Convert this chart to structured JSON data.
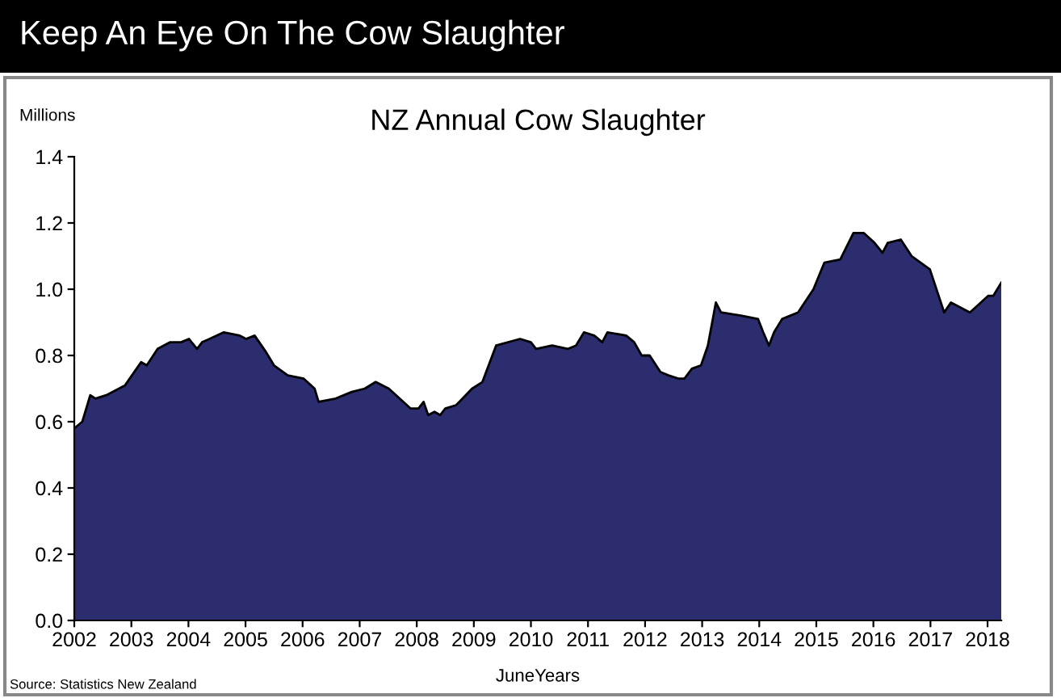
{
  "chart_data": {
    "type": "area",
    "title": "Keep An Eye On The Cow Slaughter",
    "subtitle": "NZ Annual Cow Slaughter",
    "ylabel": "Millions",
    "xlabel": "JuneYears",
    "annotations": [
      "Source: Statistics New Zealand"
    ],
    "series": [
      {
        "color": "#2b2d6e",
        "x": [
          2002.0,
          2002.14,
          2002.28,
          2002.37,
          2002.56,
          2002.89,
          2003.17,
          2003.27,
          2003.46,
          2003.68,
          2003.87,
          2004.01,
          2004.15,
          2004.24,
          2004.62,
          2004.9,
          2005.01,
          2005.16,
          2005.36,
          2005.5,
          2005.74,
          2006.02,
          2006.21,
          2006.28,
          2006.58,
          2006.86,
          2007.09,
          2007.28,
          2007.51,
          2007.89,
          2008.03,
          2008.12,
          2008.2,
          2008.31,
          2008.41,
          2008.5,
          2008.69,
          2008.97,
          2009.15,
          2009.39,
          2009.81,
          2010.0,
          2010.09,
          2010.37,
          2010.65,
          2010.79,
          2010.93,
          2011.11,
          2011.25,
          2011.34,
          2011.67,
          2011.81,
          2011.94,
          2012.08,
          2012.27,
          2012.41,
          2012.59,
          2012.69,
          2012.82,
          2012.98,
          2013.1,
          2013.24,
          2013.33,
          2013.7,
          2013.98,
          2014.07,
          2014.17,
          2014.26,
          2014.4,
          2014.68,
          2014.95,
          2015.14,
          2015.42,
          2015.65,
          2015.83,
          2016.02,
          2016.16,
          2016.25,
          2016.48,
          2016.67,
          2016.99,
          2017.24,
          2017.36,
          2017.69,
          2017.82,
          2018.01,
          2018.1,
          2018.24
        ],
        "values": [
          0.58,
          0.6,
          0.68,
          0.67,
          0.68,
          0.71,
          0.78,
          0.77,
          0.82,
          0.84,
          0.84,
          0.85,
          0.82,
          0.84,
          0.87,
          0.86,
          0.85,
          0.86,
          0.81,
          0.77,
          0.74,
          0.73,
          0.7,
          0.66,
          0.67,
          0.69,
          0.7,
          0.72,
          0.7,
          0.64,
          0.64,
          0.66,
          0.62,
          0.63,
          0.62,
          0.64,
          0.65,
          0.7,
          0.72,
          0.83,
          0.85,
          0.84,
          0.82,
          0.83,
          0.82,
          0.83,
          0.87,
          0.86,
          0.84,
          0.87,
          0.86,
          0.84,
          0.8,
          0.8,
          0.75,
          0.74,
          0.73,
          0.73,
          0.76,
          0.77,
          0.83,
          0.96,
          0.93,
          0.92,
          0.91,
          0.87,
          0.83,
          0.87,
          0.91,
          0.93,
          1.0,
          1.08,
          1.09,
          1.17,
          1.17,
          1.14,
          1.11,
          1.14,
          1.15,
          1.1,
          1.06,
          0.93,
          0.96,
          0.93,
          0.95,
          0.98,
          0.98,
          1.02
        ]
      }
    ],
    "xlim": [
      2002,
      2018.24
    ],
    "xticks": [
      2002,
      2003,
      2004,
      2005,
      2006,
      2007,
      2008,
      2009,
      2010,
      2011,
      2012,
      2013,
      2014,
      2015,
      2016,
      2017,
      2018
    ],
    "ylim": [
      0,
      1.4
    ],
    "yticks": [
      {
        "value": 0,
        "label": "0.0"
      },
      {
        "value": 0.2,
        "label": "0.2"
      },
      {
        "value": 0.4,
        "label": "0.4"
      },
      {
        "value": 0.6,
        "label": "0.6"
      },
      {
        "value": 0.8,
        "label": "0.8"
      },
      {
        "value": 1.0,
        "label": "1.0"
      },
      {
        "value": 1.2,
        "label": "1.2"
      },
      {
        "value": 1.4,
        "label": "1.4"
      }
    ],
    "grid": false,
    "legend": false
  }
}
